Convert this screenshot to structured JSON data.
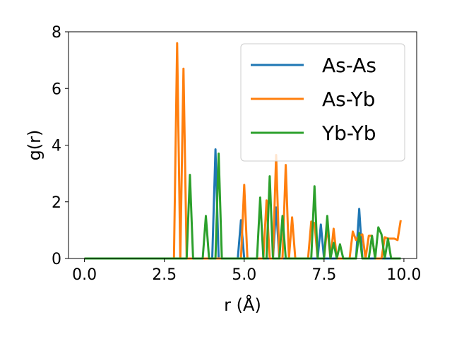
{
  "chart_data": {
    "type": "line",
    "title": "",
    "xlabel": "r (Å)",
    "ylabel": "g(r)",
    "xlim": [
      -0.5,
      10.4
    ],
    "ylim": [
      0,
      8
    ],
    "xticks": [
      "0.0",
      "2.5",
      "5.0",
      "7.5",
      "10.0"
    ],
    "xtick_values": [
      0,
      2.5,
      5,
      7.5,
      10
    ],
    "yticks": [
      "0",
      "2",
      "4",
      "6",
      "8"
    ],
    "ytick_values": [
      0,
      2,
      4,
      6,
      8
    ],
    "grid": false,
    "legend_position": "top-right",
    "series": [
      {
        "name": "As-As",
        "color": "#1f77b4",
        "x": [
          0,
          3.9,
          4.0,
          4.1,
          4.2,
          4.3,
          4.8,
          4.9,
          5.0,
          5.9,
          6.0,
          6.1,
          7.3,
          7.4,
          7.5,
          8.5,
          8.6,
          8.7,
          9.9
        ],
        "y": [
          0,
          0,
          0,
          3.85,
          0,
          0,
          0,
          1.35,
          0,
          0,
          1.8,
          0,
          0,
          1.2,
          0,
          0,
          1.75,
          0,
          0
        ]
      },
      {
        "name": "As-Yb",
        "color": "#ff7f0e",
        "x": [
          0,
          2.8,
          2.9,
          3.0,
          3.1,
          3.2,
          4.9,
          5.0,
          5.1,
          5.6,
          5.7,
          5.8,
          5.9,
          6.0,
          6.1,
          6.2,
          6.3,
          6.4,
          6.5,
          6.6,
          7.0,
          7.1,
          7.2,
          7.3,
          7.5,
          7.6,
          7.7,
          7.8,
          7.9,
          8.0,
          8.3,
          8.4,
          8.5,
          8.6,
          8.7,
          8.8,
          8.9,
          9.0,
          9.1,
          9.3,
          9.4,
          9.5,
          9.7,
          9.8,
          9.9
        ],
        "y": [
          0,
          0,
          7.6,
          0,
          6.7,
          0,
          0,
          2.6,
          0,
          0,
          2.05,
          0,
          0,
          3.65,
          0,
          0,
          3.3,
          0,
          1.45,
          0,
          0,
          1.3,
          1.25,
          0,
          0,
          1.15,
          0,
          1.05,
          0,
          0,
          0,
          0.95,
          0.65,
          0.8,
          0.85,
          0,
          0.8,
          0.8,
          0,
          0,
          0.75,
          0.7,
          0.7,
          0.65,
          1.35
        ]
      },
      {
        "name": "Yb-Yb",
        "color": "#2ca02c",
        "x": [
          0,
          3.2,
          3.3,
          3.4,
          3.7,
          3.8,
          3.9,
          4.1,
          4.2,
          4.3,
          5.4,
          5.5,
          5.6,
          5.7,
          5.8,
          5.9,
          6.1,
          6.2,
          6.3,
          6.4,
          6.5,
          7.1,
          7.2,
          7.3,
          7.5,
          7.6,
          7.7,
          7.8,
          7.9,
          8.0,
          8.1,
          8.2,
          8.5,
          8.6,
          8.7,
          8.9,
          9.0,
          9.1,
          9.2,
          9.3,
          9.4,
          9.5,
          9.6,
          9.7,
          9.9
        ],
        "y": [
          0,
          0,
          2.95,
          0,
          0,
          1.5,
          0,
          0,
          3.7,
          0,
          0,
          2.15,
          0,
          0,
          2.9,
          0,
          0,
          1.5,
          0,
          0,
          0,
          0,
          2.55,
          0,
          0,
          1.5,
          0,
          0.55,
          0,
          0.5,
          0,
          0,
          0,
          0.9,
          0,
          0,
          0.8,
          0,
          1.1,
          0.85,
          0,
          0.7,
          0,
          0,
          0
        ]
      }
    ]
  }
}
